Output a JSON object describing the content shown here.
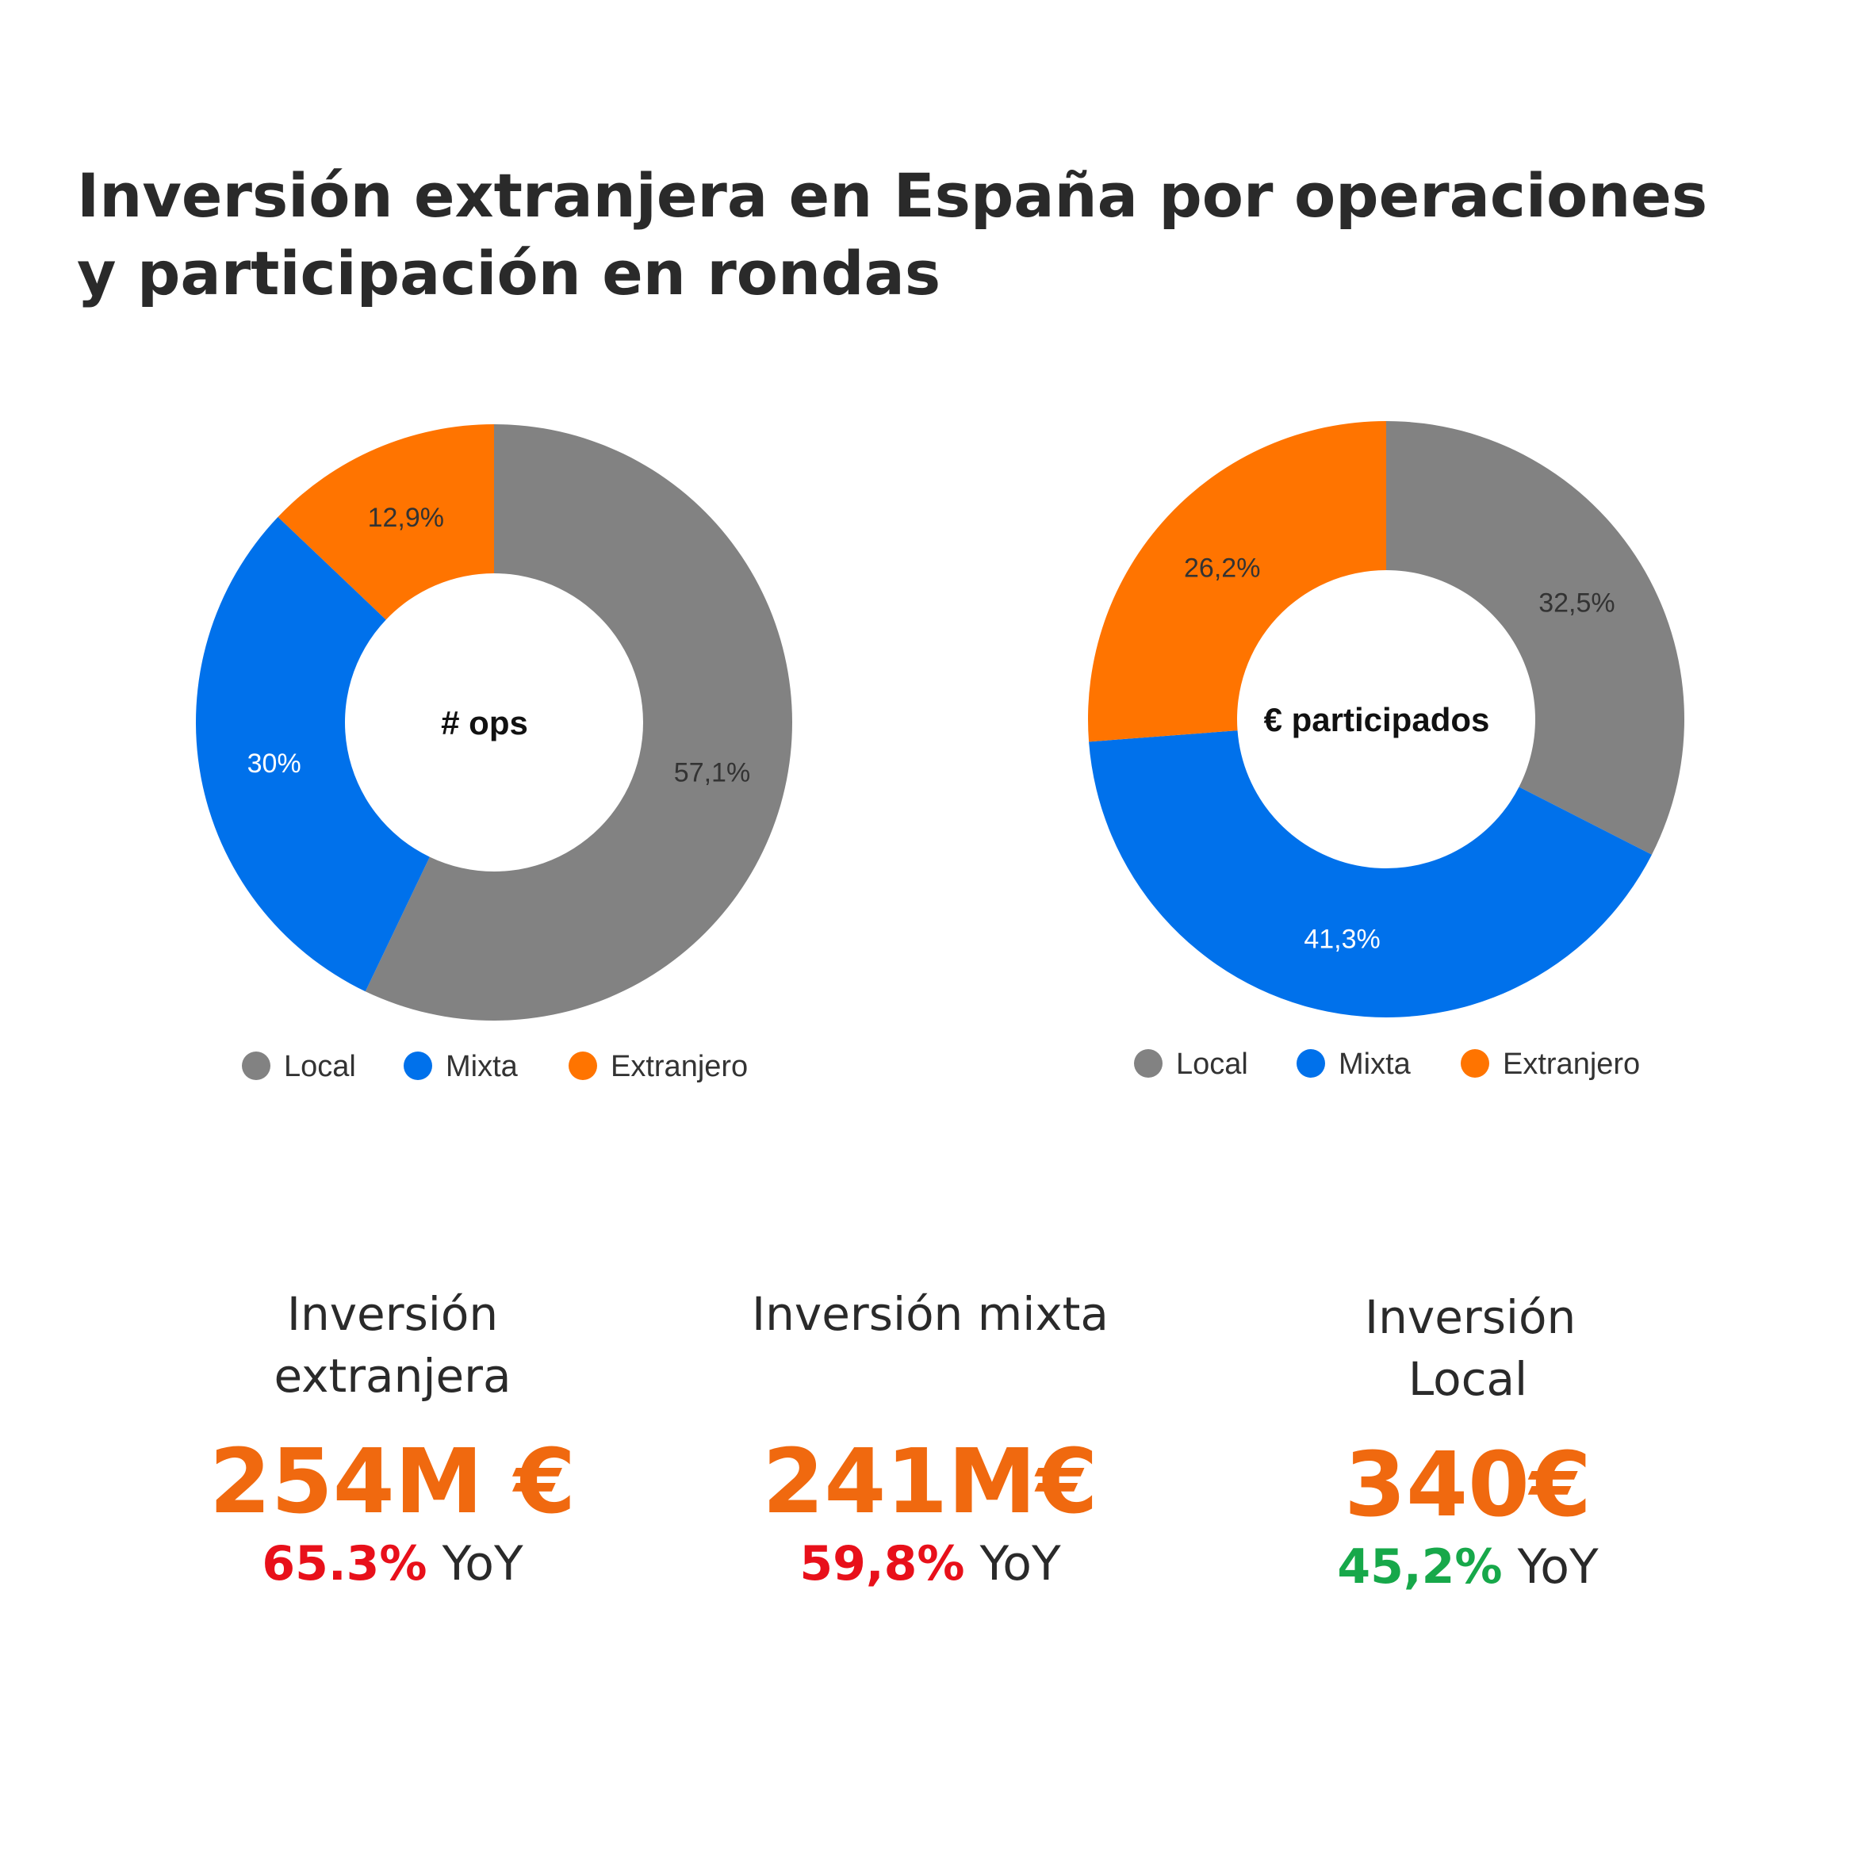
{
  "title": "Inversión extranjera en España por operaciones y participación en rondas",
  "chart_data": [
    {
      "type": "pie",
      "variant": "donut",
      "center_label": "# ops",
      "categories": [
        "Local",
        "Mixta",
        "Extranjero"
      ],
      "values": [
        57.1,
        30,
        12.9
      ],
      "data_labels": [
        "57,1%",
        "30%",
        "12,9%"
      ],
      "colors": [
        "#828282",
        "#0071eb",
        "#ff7400"
      ],
      "legend": "bottom"
    },
    {
      "type": "pie",
      "variant": "donut",
      "center_label": "€ participados",
      "categories": [
        "Local",
        "Mixta",
        "Extranjero"
      ],
      "values": [
        32.5,
        41.3,
        26.2
      ],
      "data_labels": [
        "32,5%",
        "41,3%",
        "26,2%"
      ],
      "colors": [
        "#828282",
        "#0071eb",
        "#ff7400"
      ],
      "legend": "bottom"
    }
  ],
  "kpis": [
    {
      "label": "Inversión extranjera",
      "value": "254M €",
      "change": "65.3%",
      "suffix": "YoY",
      "change_color": "#e8101a"
    },
    {
      "label": "Inversión mixta",
      "value": "241M€",
      "change": "59,8%",
      "suffix": "YoY",
      "change_color": "#e8101a"
    },
    {
      "label": "Inversión Local",
      "value": "340€",
      "change": "45,2%",
      "suffix": "YoY",
      "change_color": "#17a84a"
    }
  ],
  "colors": {
    "kpi_value": "#f0690f"
  }
}
